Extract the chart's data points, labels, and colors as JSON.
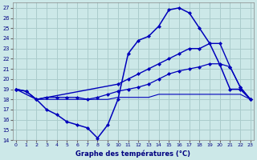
{
  "title": "Graphe des températures (°C)",
  "bg_color": "#cce8e8",
  "grid_color": "#aacccc",
  "line_color": "#0000bb",
  "xlim_min": -0.3,
  "xlim_max": 23.3,
  "ylim_min": 14,
  "ylim_max": 27.5,
  "xticks": [
    0,
    1,
    2,
    3,
    4,
    5,
    6,
    7,
    8,
    9,
    10,
    11,
    12,
    13,
    14,
    15,
    16,
    17,
    18,
    19,
    20,
    21,
    22,
    23
  ],
  "yticks": [
    14,
    15,
    16,
    17,
    18,
    19,
    20,
    21,
    22,
    23,
    24,
    25,
    26,
    27
  ],
  "curve1_x": [
    0,
    1,
    2,
    3,
    4,
    5,
    6,
    7,
    8,
    9,
    10,
    11,
    12,
    13,
    14,
    15,
    16,
    17,
    18,
    19,
    20,
    21,
    22,
    23
  ],
  "curve1_y": [
    19.0,
    18.8,
    18.0,
    17.0,
    16.5,
    15.8,
    15.5,
    15.2,
    14.2,
    15.5,
    18.0,
    22.5,
    23.8,
    24.2,
    25.2,
    26.8,
    27.0,
    26.5,
    25.0,
    23.5,
    21.4,
    19.0,
    19.0,
    18.0
  ],
  "curve2_x": [
    0,
    2,
    10,
    11,
    12,
    13,
    14,
    15,
    16,
    17,
    18,
    19,
    20,
    21,
    22,
    23
  ],
  "curve2_y": [
    19.0,
    18.0,
    19.5,
    20.0,
    20.5,
    21.0,
    21.5,
    22.0,
    22.5,
    23.0,
    23.0,
    23.5,
    23.5,
    21.2,
    19.2,
    18.0
  ],
  "curve3_x": [
    0,
    1,
    2,
    3,
    4,
    5,
    6,
    7,
    8,
    9,
    10,
    11,
    12,
    13,
    14,
    15,
    16,
    17,
    18,
    19,
    20,
    21,
    22,
    23
  ],
  "curve3_y": [
    19.0,
    18.8,
    18.0,
    18.2,
    18.2,
    18.2,
    18.2,
    18.0,
    18.2,
    18.5,
    18.8,
    19.0,
    19.2,
    19.5,
    20.0,
    20.5,
    20.8,
    21.0,
    21.2,
    21.5,
    21.5,
    21.2,
    19.2,
    18.0
  ],
  "curve4_x": [
    0,
    1,
    2,
    3,
    4,
    5,
    6,
    7,
    8,
    9,
    10,
    11,
    12,
    13,
    14,
    15,
    16,
    17,
    18,
    19,
    20,
    21,
    22,
    23
  ],
  "curve4_y": [
    19.0,
    18.8,
    18.0,
    18.0,
    18.0,
    18.0,
    18.0,
    18.0,
    18.0,
    18.0,
    18.2,
    18.2,
    18.2,
    18.2,
    18.5,
    18.5,
    18.5,
    18.5,
    18.5,
    18.5,
    18.5,
    18.5,
    18.5,
    18.0
  ]
}
